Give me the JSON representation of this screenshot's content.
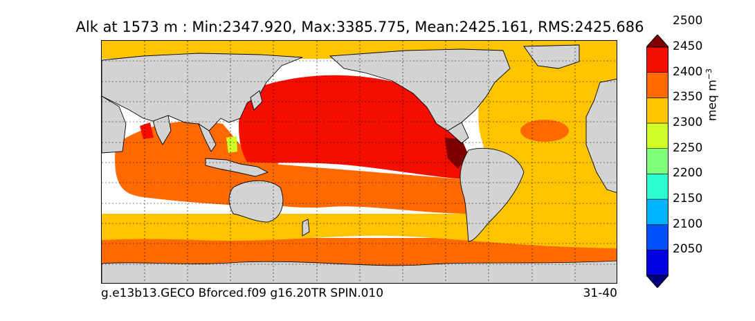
{
  "title": "Alk at 1573 m : Min:2347.920, Max:3385.775, Mean:2425.161, RMS:2425.686",
  "footer_left": "g.e13b13.GECO Bforced.f09 g16.20TR SPIN.010",
  "footer_right": "31-40",
  "colorbar": {
    "label": "meq m",
    "label_exponent": "−3",
    "ticks": [
      "2050",
      "2100",
      "2150",
      "2200",
      "2250",
      "2300",
      "2350",
      "2400",
      "2450",
      "2500"
    ],
    "levels": [
      {
        "color": "#00007f"
      },
      {
        "color": "#0000e0"
      },
      {
        "color": "#0050ff"
      },
      {
        "color": "#00b4ff"
      },
      {
        "color": "#2affd0"
      },
      {
        "color": "#7dff7a"
      },
      {
        "color": "#d0ff26"
      },
      {
        "color": "#ffc400"
      },
      {
        "color": "#ff6a00"
      },
      {
        "color": "#f40e00"
      },
      {
        "color": "#7f0000"
      }
    ],
    "extend": "both"
  },
  "map": {
    "projection": "cylindrical",
    "land_color": "#d3d3d3",
    "grid": "dotted",
    "regions": {
      "arctic": "#ffc400",
      "atlantic": "#ffc400",
      "north_pacific": "#f40e00",
      "south_pacific_band": "#ff6a00",
      "indian_ocean": "#ff6a00",
      "southern_ring": "#ff6a00",
      "subantarctic": "#ffc400",
      "east_pacific_max": "#7f0000",
      "indonesian_seas": "#d0ff26"
    }
  }
}
